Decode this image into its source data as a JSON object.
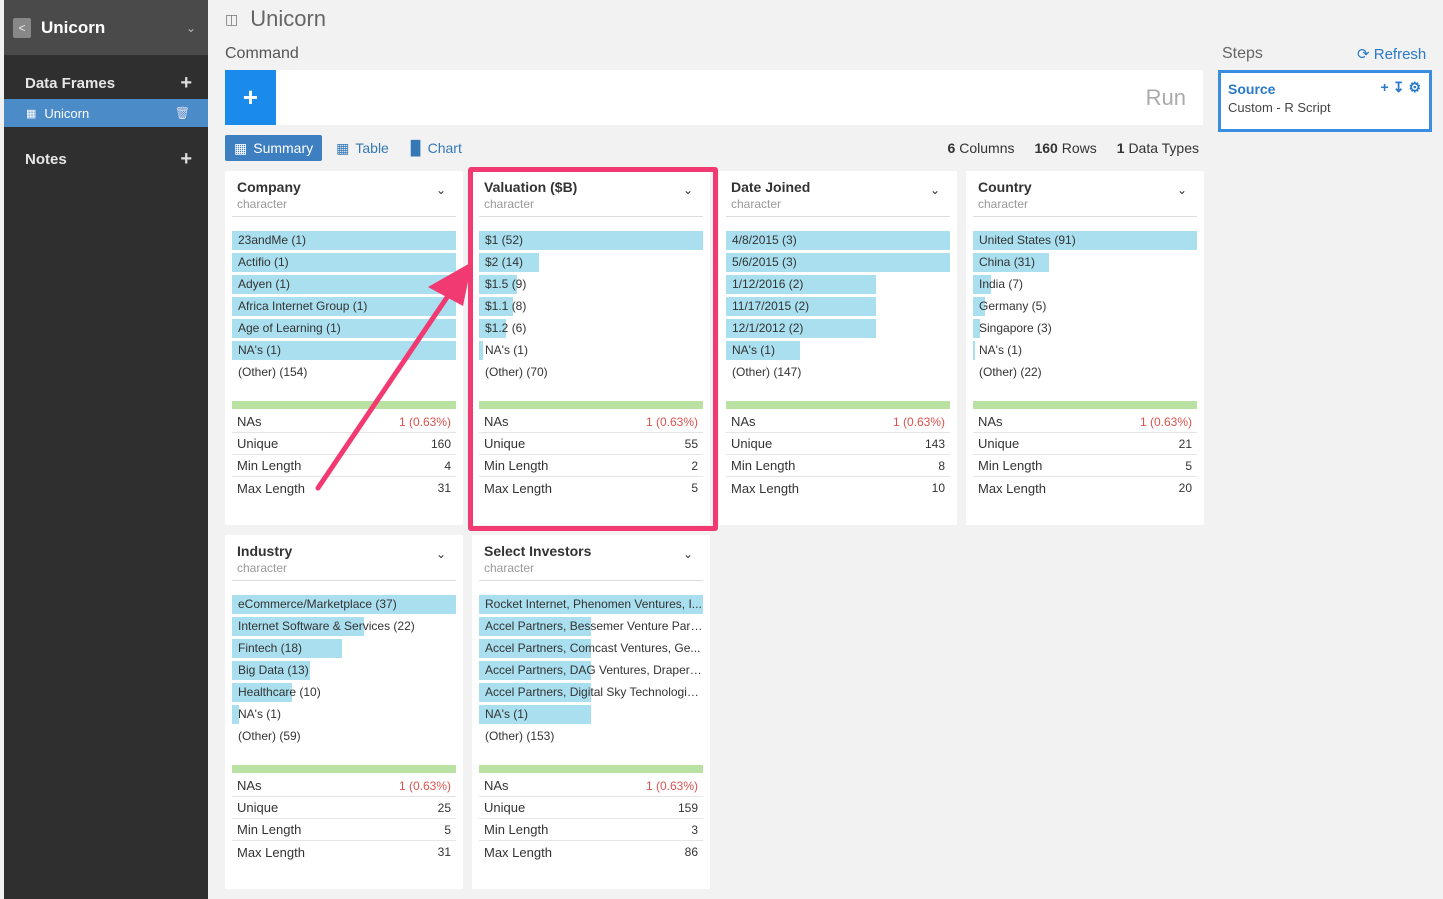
{
  "sidebar": {
    "title": "Unicorn",
    "data_frames_label": "Data Frames",
    "frame_name": "Unicorn",
    "notes_label": "Notes"
  },
  "header": {
    "title": "Unicorn",
    "command_label": "Command",
    "run_label": "Run"
  },
  "tabs": [
    {
      "label": "Summary"
    },
    {
      "label": "Table"
    },
    {
      "label": "Chart"
    }
  ],
  "stats": {
    "columns_num": "6",
    "columns_label": "Columns",
    "rows_num": "160",
    "rows_label": "Rows",
    "types_num": "1",
    "types_label": "Data Types"
  },
  "steps": {
    "label": "Steps",
    "refresh_label": "Refresh",
    "step_title": "Source",
    "step_sub": "Custom - R Script"
  },
  "metric_labels": {
    "nas": "NAs",
    "unique": "Unique",
    "min_length": "Min Length",
    "max_length": "Max Length"
  },
  "colors": {
    "accent": "#1a8bea",
    "highlight": "#f23a72",
    "bar": "#a9dfef",
    "na_bar": "#b9e2a2"
  },
  "columns": [
    {
      "name": "Company",
      "type": "character",
      "values": [
        {
          "label": "23andMe (1)",
          "frac": 1.0
        },
        {
          "label": "Actifio (1)",
          "frac": 1.0
        },
        {
          "label": "Adyen (1)",
          "frac": 1.0
        },
        {
          "label": "Africa Internet Group (1)",
          "frac": 1.0
        },
        {
          "label": "Age of Learning (1)",
          "frac": 1.0
        },
        {
          "label": "NA's (1)",
          "frac": 1.0
        },
        {
          "label": "(Other) (154)",
          "frac": 0
        }
      ],
      "nas": "1 (0.63%)",
      "unique": "160",
      "min_length": "4",
      "max_length": "31"
    },
    {
      "name": "Valuation ($B)",
      "type": "character",
      "values": [
        {
          "label": "$1 (52)",
          "frac": 1.0
        },
        {
          "label": "$2 (14)",
          "frac": 0.27
        },
        {
          "label": "$1.5 (9)",
          "frac": 0.17
        },
        {
          "label": "$1.1 (8)",
          "frac": 0.15
        },
        {
          "label": "$1.2 (6)",
          "frac": 0.12
        },
        {
          "label": "NA's (1)",
          "frac": 0.02
        },
        {
          "label": "(Other) (70)",
          "frac": 0
        }
      ],
      "nas": "1 (0.63%)",
      "unique": "55",
      "min_length": "2",
      "max_length": "5"
    },
    {
      "name": "Date Joined",
      "type": "character",
      "values": [
        {
          "label": "4/8/2015 (3)",
          "frac": 1.0
        },
        {
          "label": "5/6/2015 (3)",
          "frac": 1.0
        },
        {
          "label": "1/12/2016 (2)",
          "frac": 0.67
        },
        {
          "label": "11/17/2015 (2)",
          "frac": 0.67
        },
        {
          "label": "12/1/2012 (2)",
          "frac": 0.67
        },
        {
          "label": "NA's (1)",
          "frac": 0.33
        },
        {
          "label": "(Other) (147)",
          "frac": 0
        }
      ],
      "nas": "1 (0.63%)",
      "unique": "143",
      "min_length": "8",
      "max_length": "10"
    },
    {
      "name": "Country",
      "type": "character",
      "values": [
        {
          "label": "United States (91)",
          "frac": 1.0
        },
        {
          "label": "China (31)",
          "frac": 0.34
        },
        {
          "label": "India (7)",
          "frac": 0.08
        },
        {
          "label": "Germany (5)",
          "frac": 0.055
        },
        {
          "label": "Singapore (3)",
          "frac": 0.033
        },
        {
          "label": "NA's (1)",
          "frac": 0.011
        },
        {
          "label": "(Other) (22)",
          "frac": 0
        }
      ],
      "nas": "1 (0.63%)",
      "unique": "21",
      "min_length": "5",
      "max_length": "20"
    },
    {
      "name": "Industry",
      "type": "character",
      "values": [
        {
          "label": "eCommerce/Marketplace (37)",
          "frac": 1.0
        },
        {
          "label": "Internet Software & Services (22)",
          "frac": 0.59
        },
        {
          "label": "Fintech (18)",
          "frac": 0.49
        },
        {
          "label": "Big Data (13)",
          "frac": 0.35
        },
        {
          "label": "Healthcare (10)",
          "frac": 0.27
        },
        {
          "label": "NA's (1)",
          "frac": 0.03
        },
        {
          "label": "(Other) (59)",
          "frac": 0
        }
      ],
      "nas": "1 (0.63%)",
      "unique": "25",
      "min_length": "5",
      "max_length": "31"
    },
    {
      "name": "Select Investors",
      "type": "character",
      "values": [
        {
          "label": "Rocket Internet, Phenomen Ventures, I...",
          "frac": 1.0
        },
        {
          "label": "Accel Partners, Bessemer Venture Part...",
          "frac": 0.5
        },
        {
          "label": "Accel Partners, Comcast Ventures, Ge...",
          "frac": 0.5
        },
        {
          "label": "Accel Partners, DAG Ventures, Draper ...",
          "frac": 0.5
        },
        {
          "label": "Accel Partners, Digital Sky Technologie...",
          "frac": 0.5
        },
        {
          "label": "NA's (1)",
          "frac": 0.5
        },
        {
          "label": "(Other) (153)",
          "frac": 0
        }
      ],
      "nas": "1 (0.63%)",
      "unique": "159",
      "min_length": "3",
      "max_length": "86"
    }
  ]
}
